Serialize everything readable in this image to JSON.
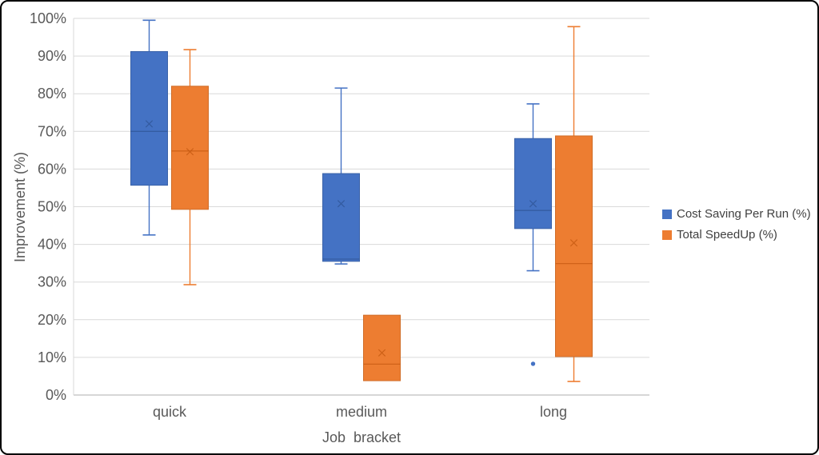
{
  "chart_data": {
    "type": "boxplot",
    "title": "",
    "xlabel": "Job  bracket",
    "ylabel": "Improvement (%)",
    "ylim": [
      0,
      100
    ],
    "ytick_step": 10,
    "ytick_suffix": "%",
    "grid": true,
    "legend_position": "right",
    "categories": [
      "quick",
      "medium",
      "long"
    ],
    "series": [
      {
        "name": "Cost Saving Per Run (%)",
        "color": "#4472C4",
        "border_color": "#3A62A8",
        "dark_color": "#2F5597",
        "boxes": [
          {
            "min": 42.5,
            "q1": 55.7,
            "median": 70.0,
            "q3": 91.2,
            "max": 99.5,
            "mean": 72.0,
            "outliers": []
          },
          {
            "min": 34.8,
            "q1": 35.5,
            "median": 36.1,
            "q3": 58.8,
            "max": 81.5,
            "mean": 50.8,
            "outliers": []
          },
          {
            "min": 33.0,
            "q1": 44.2,
            "median": 49.0,
            "q3": 68.1,
            "max": 77.3,
            "mean": 50.8,
            "outliers": [
              8.3
            ]
          }
        ]
      },
      {
        "name": "Total SpeedUp (%)",
        "color": "#ED7D31",
        "border_color": "#D06D28",
        "dark_color": "#C55A11",
        "boxes": [
          {
            "min": 29.3,
            "q1": 49.3,
            "median": 64.8,
            "q3": 82.0,
            "max": 91.7,
            "mean": 64.6,
            "outliers": []
          },
          {
            "min": 3.8,
            "q1": 3.8,
            "median": 8.2,
            "q3": 21.2,
            "max": 21.2,
            "mean": 11.2,
            "outliers": []
          },
          {
            "min": 3.6,
            "q1": 10.2,
            "median": 34.9,
            "q3": 68.8,
            "max": 97.8,
            "mean": 40.4,
            "outliers": []
          }
        ]
      }
    ],
    "axis_colors": {
      "gridline": "#D9D9D9",
      "axis_line": "#BFBFBF",
      "tick_text": "#595959",
      "legend_text": "#404040"
    }
  }
}
